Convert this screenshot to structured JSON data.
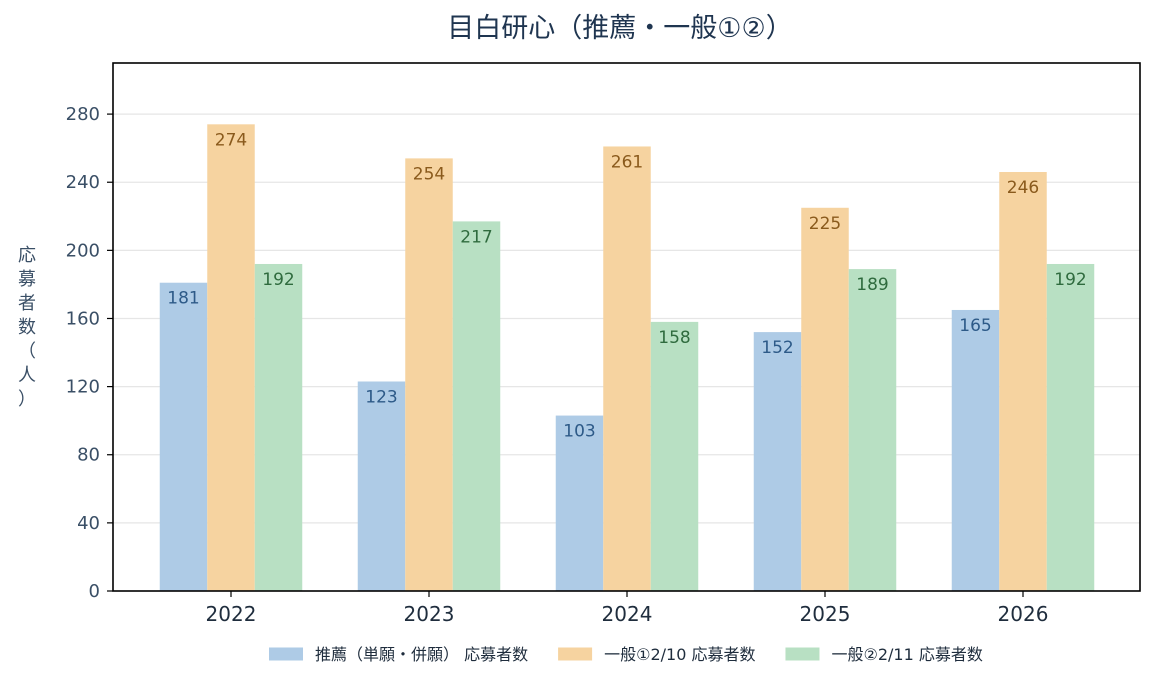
{
  "chart_data": {
    "type": "bar",
    "title": "目白研心（推薦・一般①②）",
    "xlabel": "",
    "ylabel": "応募者数（人）",
    "categories": [
      "2022",
      "2023",
      "2024",
      "2025",
      "2026"
    ],
    "ylim": [
      0,
      310
    ],
    "yticks": [
      0,
      40,
      80,
      120,
      160,
      200,
      240,
      280
    ],
    "grid": true,
    "legend_position": "bottom",
    "series": [
      {
        "name": "推薦（単願・併願） 応募者数",
        "values": [
          181,
          123,
          103,
          152,
          165
        ],
        "color": "#aecbe6",
        "label_color": "#2d5a88"
      },
      {
        "name": "一般①2/10 応募者数",
        "values": [
          274,
          254,
          261,
          225,
          246
        ],
        "color": "#f6d3a0",
        "label_color": "#8a5a1c"
      },
      {
        "name": "一般②2/11 応募者数",
        "values": [
          192,
          217,
          158,
          189,
          192
        ],
        "color": "#b8e0c3",
        "label_color": "#2f6b3e"
      }
    ]
  }
}
